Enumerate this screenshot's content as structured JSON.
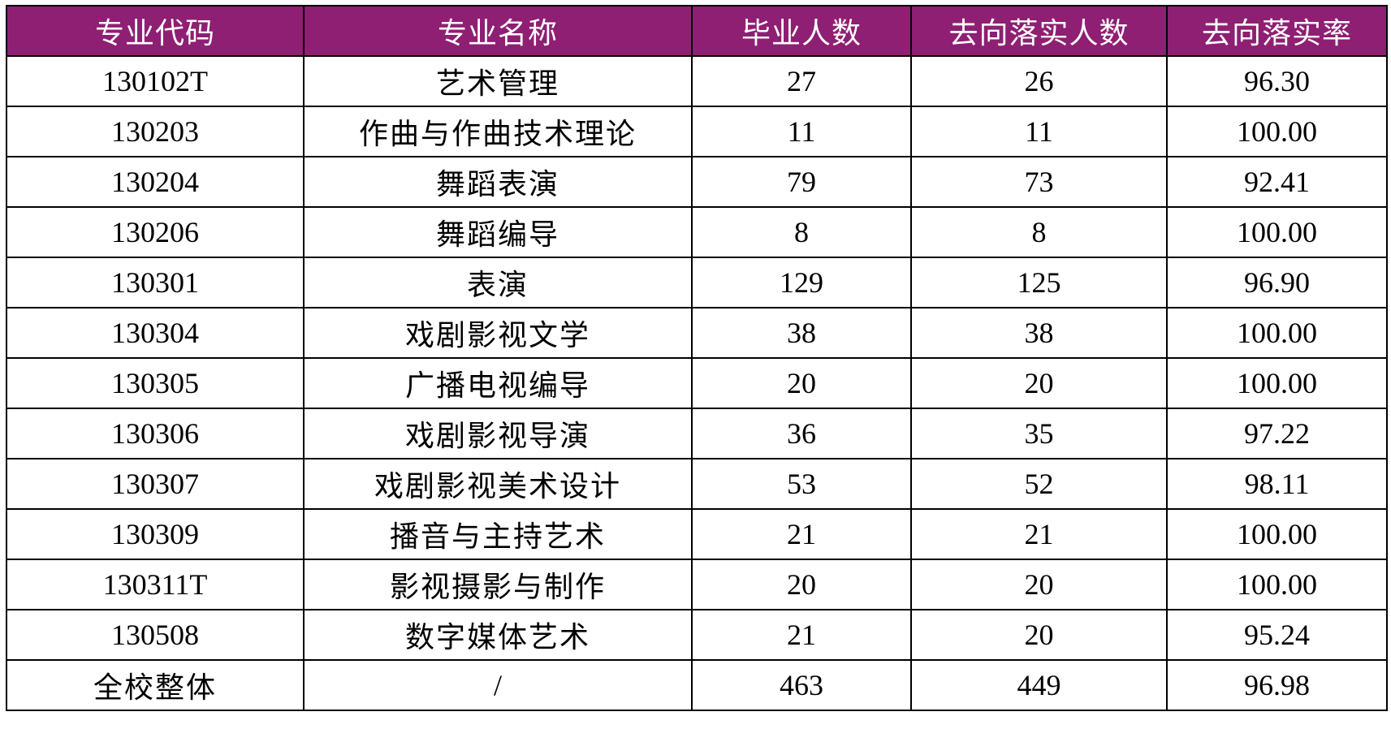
{
  "colors": {
    "header_bg": "#8e1f73",
    "header_text": "#ffffff",
    "border": "#000000"
  },
  "table": {
    "headers": [
      "专业代码",
      "专业名称",
      "毕业人数",
      "去向落实人数",
      "去向落实率"
    ],
    "rows": [
      [
        "130102T",
        "艺术管理",
        "27",
        "26",
        "96.30"
      ],
      [
        "130203",
        "作曲与作曲技术理论",
        "11",
        "11",
        "100.00"
      ],
      [
        "130204",
        "舞蹈表演",
        "79",
        "73",
        "92.41"
      ],
      [
        "130206",
        "舞蹈编导",
        "8",
        "8",
        "100.00"
      ],
      [
        "130301",
        "表演",
        "129",
        "125",
        "96.90"
      ],
      [
        "130304",
        "戏剧影视文学",
        "38",
        "38",
        "100.00"
      ],
      [
        "130305",
        "广播电视编导",
        "20",
        "20",
        "100.00"
      ],
      [
        "130306",
        "戏剧影视导演",
        "36",
        "35",
        "97.22"
      ],
      [
        "130307",
        "戏剧影视美术设计",
        "53",
        "52",
        "98.11"
      ],
      [
        "130309",
        "播音与主持艺术",
        "21",
        "21",
        "100.00"
      ],
      [
        "130311T",
        "影视摄影与制作",
        "20",
        "20",
        "100.00"
      ],
      [
        "130508",
        "数字媒体艺术",
        "21",
        "20",
        "95.24"
      ],
      [
        "全校整体",
        "/",
        "463",
        "449",
        "96.98"
      ]
    ]
  }
}
